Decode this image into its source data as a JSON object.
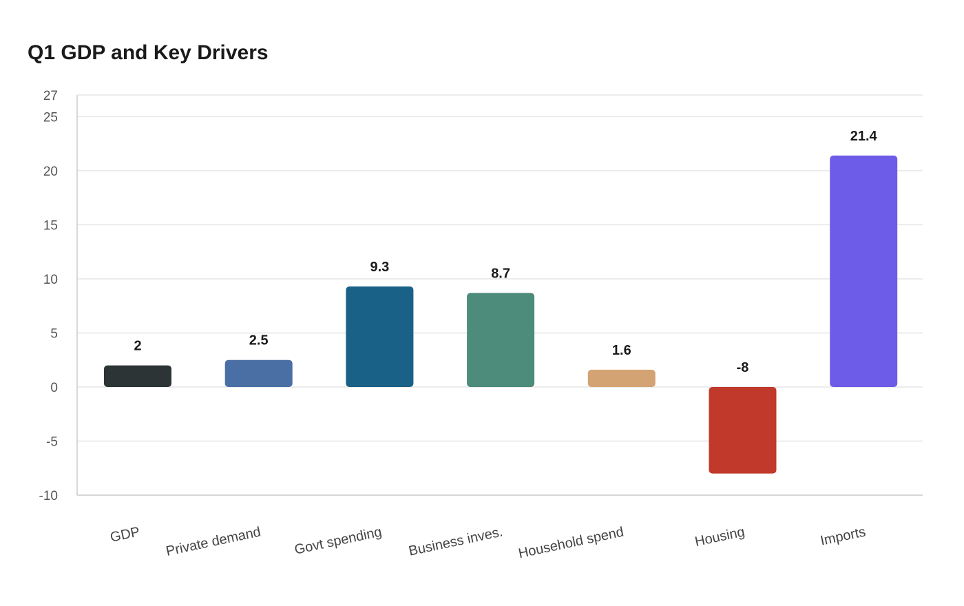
{
  "chart_data": {
    "type": "bar",
    "title": "Q1 GDP and Key Drivers",
    "xlabel": "",
    "ylabel": "",
    "categories": [
      "GDP",
      "Private demand",
      "Govt spending",
      "Business inves.",
      "Household spend",
      "Housing",
      "Imports"
    ],
    "values": [
      2,
      2.5,
      9.3,
      8.7,
      1.6,
      -8,
      21.4
    ],
    "data_labels": [
      "2",
      "2.5",
      "9.3",
      "8.7",
      "1.6",
      "-8",
      "21.4"
    ],
    "colors": [
      "#2d3436",
      "#4a6fa5",
      "#1a6188",
      "#4d8b7a",
      "#d4a373",
      "#c0392b",
      "#6c5ce7"
    ],
    "ylim": [
      -10,
      27
    ],
    "yticks": [
      -10,
      -5,
      0,
      5,
      10,
      15,
      20,
      25,
      27
    ],
    "ytick_labels": [
      "-10",
      "-5",
      "0",
      "5",
      "10",
      "15",
      "20",
      "25",
      "27"
    ],
    "grid": true,
    "legend": "none"
  }
}
